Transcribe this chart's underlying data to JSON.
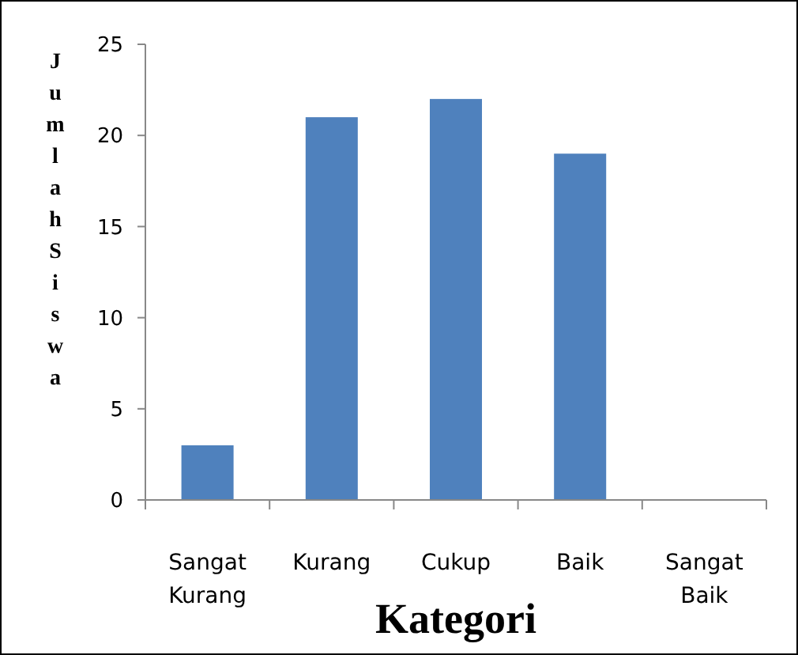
{
  "chart_data": {
    "type": "bar",
    "xlabel": "Kategori",
    "ylabel": "Jumlah Siswa",
    "categories": [
      "Sangat Kurang",
      "Kurang",
      "Cukup",
      "Baik",
      "Sangat Baik"
    ],
    "values": [
      3,
      21,
      22,
      19,
      0
    ],
    "color": "#4f81bd",
    "ylim": [
      0,
      25
    ],
    "yticks": [
      0,
      5,
      10,
      15,
      20,
      25
    ]
  }
}
